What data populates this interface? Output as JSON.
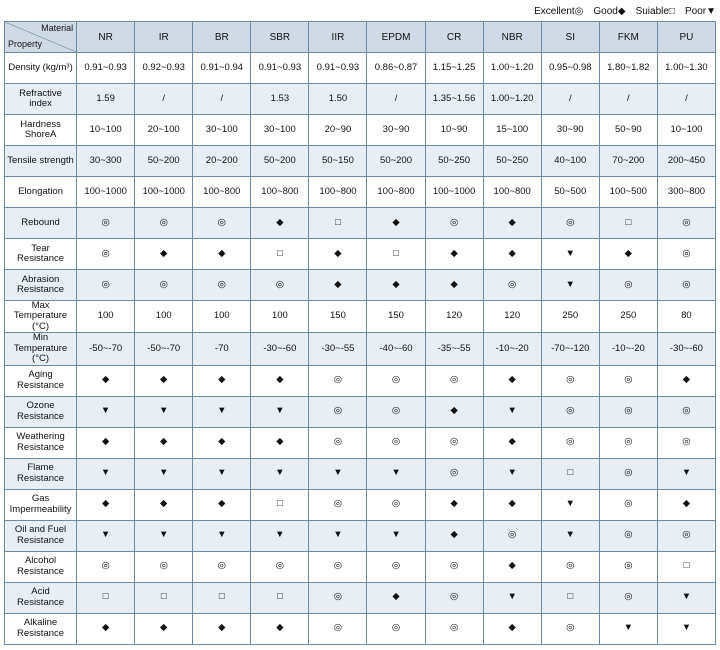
{
  "legend": [
    {
      "label": "Excellent",
      "symbol": "◎"
    },
    {
      "label": "Good",
      "symbol": "◆"
    },
    {
      "label": "Suiable",
      "symbol": "□"
    },
    {
      "label": "Poor",
      "symbol": "▼"
    }
  ],
  "diag": {
    "top": "Material",
    "bottom": "Property"
  },
  "materials": [
    "NR",
    "IR",
    "BR",
    "SBR",
    "IIR",
    "EPDM",
    "CR",
    "NBR",
    "SI",
    "FKM",
    "PU"
  ],
  "rows": [
    {
      "label": "Density (kg/m³)",
      "shade": false,
      "cells": [
        "0.91~0.93",
        "0.92~0.93",
        "0.91~0.94",
        "0.91~0.93",
        "0.91~0.93",
        "0.86~0.87",
        "1.15~1.25",
        "1.00~1.20",
        "0.95~0.98",
        "1.80~1.82",
        "1.00~1.30"
      ]
    },
    {
      "label": "Refractive index",
      "shade": true,
      "cells": [
        "1.59",
        "/",
        "/",
        "1.53",
        "1.50",
        "/",
        "1.35~1.56",
        "1.00~1.20",
        "/",
        "/",
        "/"
      ]
    },
    {
      "label": "Hardness ShoreA",
      "shade": false,
      "cells": [
        "10~100",
        "20~100",
        "30~100",
        "30~100",
        "20~90",
        "30~90",
        "10~90",
        "15~100",
        "30~90",
        "50~90",
        "10~100"
      ]
    },
    {
      "label": "Tensile strength",
      "shade": true,
      "cells": [
        "30~300",
        "50~200",
        "20~200",
        "50~200",
        "50~150",
        "50~200",
        "50~250",
        "50~250",
        "40~100",
        "70~200",
        "200~450"
      ]
    },
    {
      "label": "Elongation",
      "shade": false,
      "cells": [
        "100~1000",
        "100~1000",
        "100~800",
        "100~800",
        "100~800",
        "100~800",
        "100~1000",
        "100~800",
        "50~500",
        "100~500",
        "300~800"
      ]
    },
    {
      "label": "Rebound",
      "shade": true,
      "cells": [
        "◎",
        "◎",
        "◎",
        "◆",
        "□",
        "◆",
        "◎",
        "◆",
        "◎",
        "□",
        "◎"
      ]
    },
    {
      "label": "Tear Resistance",
      "shade": false,
      "cells": [
        "◎",
        "◆",
        "◆",
        "□",
        "◆",
        "□",
        "◆",
        "◆",
        "▼",
        "◆",
        "◎"
      ]
    },
    {
      "label": "Abrasion Resistance",
      "shade": true,
      "cells": [
        "◎",
        "◎",
        "◎",
        "◎",
        "◆",
        "◆",
        "◆",
        "◎",
        "▼",
        "◎",
        "◎"
      ]
    },
    {
      "label": "Max Temperature (°C)",
      "shade": false,
      "cells": [
        "100",
        "100",
        "100",
        "100",
        "150",
        "150",
        "120",
        "120",
        "250",
        "250",
        "80"
      ]
    },
    {
      "label": "Min Temperature (°C)",
      "shade": true,
      "cells": [
        "-50~-70",
        "-50~-70",
        "-70",
        "-30~-60",
        "-30~-55",
        "-40~-60",
        "-35~-55",
        "-10~-20",
        "-70~-120",
        "-10~-20",
        "-30~-60"
      ]
    },
    {
      "label": "Aging Resistance",
      "shade": false,
      "cells": [
        "◆",
        "◆",
        "◆",
        "◆",
        "◎",
        "◎",
        "◎",
        "◆",
        "◎",
        "◎",
        "◆"
      ]
    },
    {
      "label": "Ozone Resistance",
      "shade": true,
      "cells": [
        "▼",
        "▼",
        "▼",
        "▼",
        "◎",
        "◎",
        "◆",
        "▼",
        "◎",
        "◎",
        "◎"
      ]
    },
    {
      "label": "Weathering Resistance",
      "shade": false,
      "cells": [
        "◆",
        "◆",
        "◆",
        "◆",
        "◎",
        "◎",
        "◎",
        "◆",
        "◎",
        "◎",
        "◎"
      ]
    },
    {
      "label": "Flame Resistance",
      "shade": true,
      "cells": [
        "▼",
        "▼",
        "▼",
        "▼",
        "▼",
        "▼",
        "◎",
        "▼",
        "□",
        "◎",
        "▼"
      ]
    },
    {
      "label": "Gas Impermeability",
      "shade": false,
      "cells": [
        "◆",
        "◆",
        "◆",
        "□",
        "◎",
        "◎",
        "◆",
        "◆",
        "▼",
        "◎",
        "◆"
      ]
    },
    {
      "label": "Oil and Fuel Resistance",
      "shade": true,
      "cells": [
        "▼",
        "▼",
        "▼",
        "▼",
        "▼",
        "▼",
        "◆",
        "◎",
        "▼",
        "◎",
        "◎"
      ]
    },
    {
      "label": "Alcohol Resistance",
      "shade": false,
      "cells": [
        "◎",
        "◎",
        "◎",
        "◎",
        "◎",
        "◎",
        "◎",
        "◆",
        "◎",
        "◎",
        "□"
      ]
    },
    {
      "label": "Acid Resistance",
      "shade": true,
      "cells": [
        "□",
        "□",
        "□",
        "□",
        "◎",
        "◆",
        "◎",
        "▼",
        "□",
        "◎",
        "▼"
      ]
    },
    {
      "label": "Alkaline Resistance",
      "shade": false,
      "cells": [
        "◆",
        "◆",
        "◆",
        "◆",
        "◎",
        "◎",
        "◎",
        "◆",
        "◎",
        "▼",
        "▼"
      ]
    }
  ],
  "style": {
    "border_color": "#6b8aa5",
    "header_bg": "#cfdae6",
    "shade_bg": "#e7eef4",
    "plain_bg": "#ffffff",
    "font_size_pt": 10
  }
}
